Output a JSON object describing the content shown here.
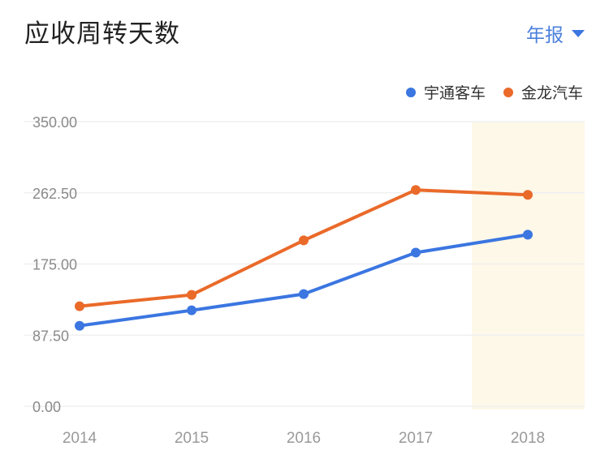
{
  "header": {
    "title": "应收周转天数",
    "period_selector": {
      "label": "年报",
      "icon": "caret-down-icon"
    }
  },
  "legend": [
    {
      "label": "宇通客车",
      "color": "#3b76e1"
    },
    {
      "label": "金龙汽车",
      "color": "#ea6a2a"
    }
  ],
  "colors": {
    "highlight_band": "#fdf8e8",
    "gridline": "#f0f0f0",
    "axis_text": "#8a8a8a"
  },
  "chart_data": {
    "type": "line",
    "title": "应收周转天数",
    "xlabel": "",
    "ylabel": "",
    "categories": [
      "2014",
      "2015",
      "2016",
      "2017",
      "2018"
    ],
    "y_ticks": [
      "0.00",
      "87.50",
      "175.00",
      "262.50",
      "350.00"
    ],
    "ylim": [
      0,
      350
    ],
    "grid": true,
    "legend_position": "top-right",
    "highlighted_category": "2018",
    "series": [
      {
        "name": "宇通客车",
        "color": "#3b76e1",
        "values": [
          99,
          118,
          138,
          189,
          211
        ]
      },
      {
        "name": "金龙汽车",
        "color": "#ea6a2a",
        "values": [
          123,
          137,
          204,
          266,
          260
        ]
      }
    ]
  }
}
